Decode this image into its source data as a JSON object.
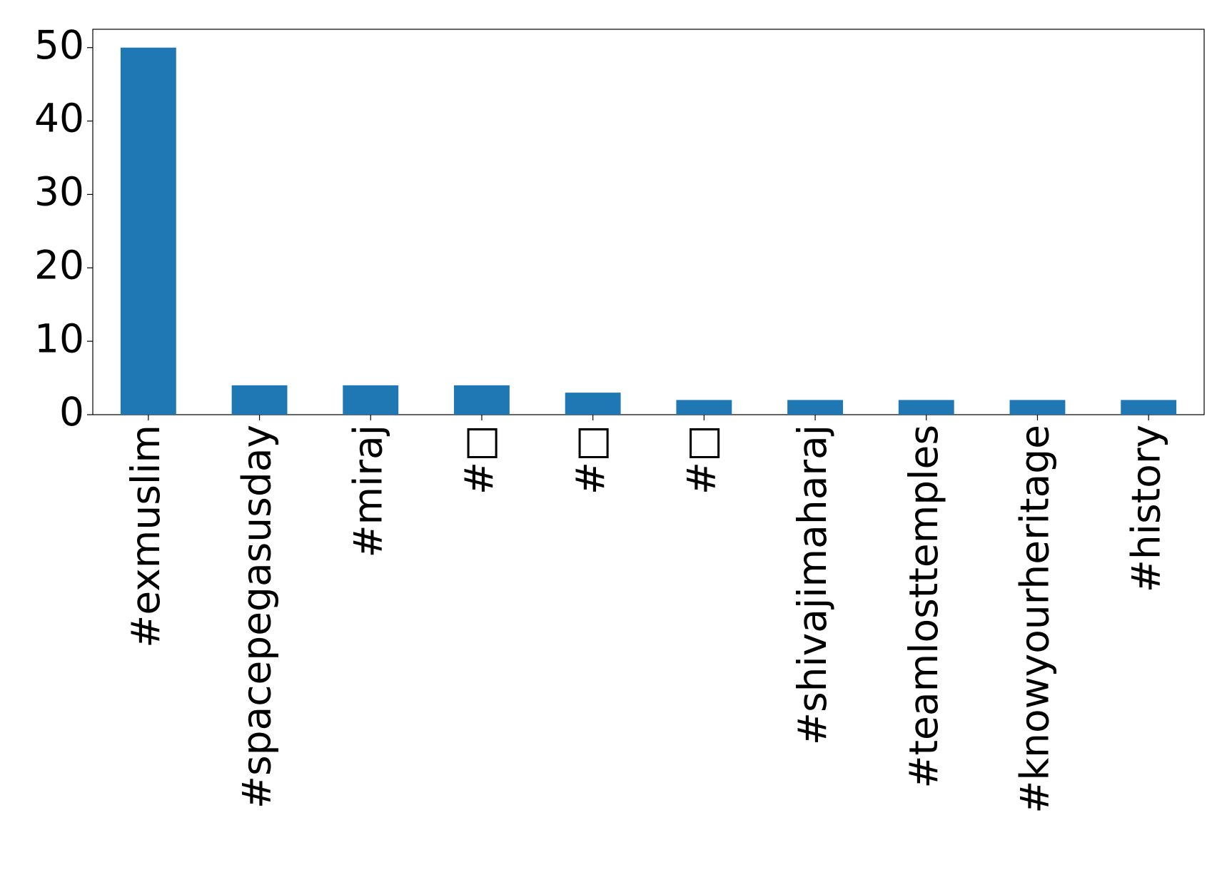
{
  "chart_data": {
    "type": "bar",
    "categories": [
      "#exmuslim",
      "#spacepegasusday",
      "#miraj",
      "#□",
      "#□",
      "#□",
      "#shivajimaharaj",
      "#teamlosttemples",
      "#knowyourheritage",
      "#history"
    ],
    "values": [
      50,
      4,
      4,
      4,
      3,
      2,
      2,
      2,
      2,
      2
    ],
    "color": "#1f77b4",
    "ylim": [
      0,
      52.5
    ],
    "yticks": [
      0,
      10,
      20,
      30,
      40,
      50
    ],
    "grid": false
  }
}
